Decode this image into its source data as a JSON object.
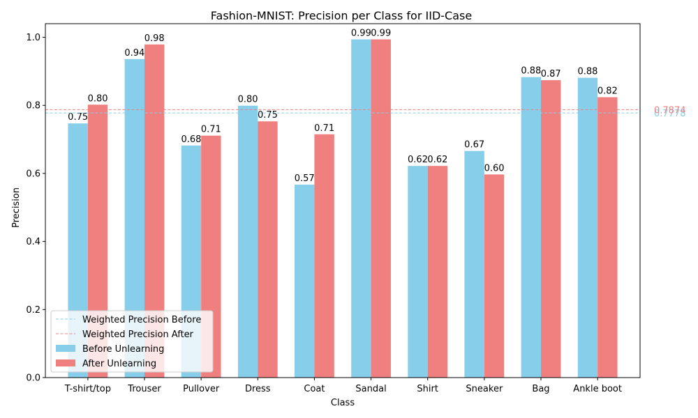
{
  "chart_data": {
    "type": "bar",
    "title": "Fashion-MNIST: Precision per Class for IID-Case",
    "xlabel": "Class",
    "ylabel": "Precision",
    "ylim": [
      0,
      1.04
    ],
    "yticks": [
      0.0,
      0.2,
      0.4,
      0.6,
      0.8,
      1.0
    ],
    "ytick_labels": [
      "0.0",
      "0.2",
      "0.4",
      "0.6",
      "0.8",
      "1.0"
    ],
    "categories": [
      "T-shirt/top",
      "Trouser",
      "Pullover",
      "Dress",
      "Coat",
      "Sandal",
      "Shirt",
      "Sneaker",
      "Bag",
      "Ankle boot"
    ],
    "series": [
      {
        "name": "Before Unlearning",
        "color": "#87CEEB",
        "values": [
          0.747,
          0.936,
          0.682,
          0.799,
          0.567,
          0.994,
          0.622,
          0.666,
          0.883,
          0.881
        ],
        "labels": [
          "0.75",
          "0.94",
          "0.68",
          "0.80",
          "0.57",
          "0.99",
          "0.62",
          "0.67",
          "0.88",
          "0.88"
        ]
      },
      {
        "name": "After Unlearning",
        "color": "#F08080",
        "values": [
          0.802,
          0.979,
          0.711,
          0.753,
          0.715,
          0.994,
          0.622,
          0.597,
          0.874,
          0.824
        ],
        "labels": [
          "0.80",
          "0.98",
          "0.71",
          "0.75",
          "0.71",
          "0.99",
          "0.62",
          "0.60",
          "0.87",
          "0.82"
        ]
      }
    ],
    "reference_lines": [
      {
        "name": "Weighted Precision Before",
        "value": 0.7778,
        "label": "0.7778",
        "color": "#87CEEB"
      },
      {
        "name": "Weighted Precision After",
        "value": 0.7874,
        "label": "0.7874",
        "color": "#F08080"
      }
    ],
    "grid": false,
    "legend_position": "lower-left"
  }
}
